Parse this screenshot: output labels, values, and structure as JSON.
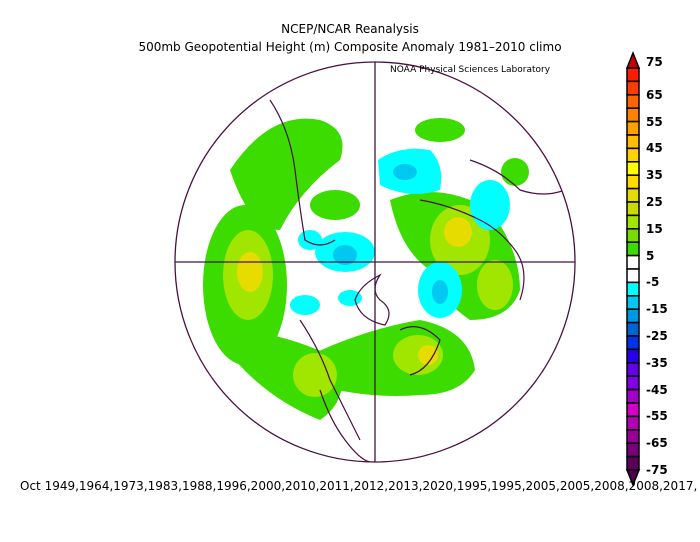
{
  "title": {
    "line1": "NCEP/NCAR Reanalysis",
    "line2": "500mb Geopotential Height (m) Composite Anomaly 1981–2010 climo",
    "credit": "NOAA Physical Sciences Laboratory"
  },
  "caption": "Oct 1949,1964,1973,1983,1988,1996,2000,2010,2011,2012,2013,2020,1995,1995,2005,2005,2008,2008,2017,",
  "colorbar": {
    "labels": [
      "75",
      "65",
      "55",
      "45",
      "35",
      "25",
      "15",
      "5",
      "-5",
      "-15",
      "-25",
      "-35",
      "-45",
      "-55",
      "-65",
      "-75"
    ],
    "colors": [
      "#ff1a00",
      "#ff3c00",
      "#ff6400",
      "#ff8200",
      "#ffa000",
      "#ffbe00",
      "#ffd200",
      "#ffff00",
      "#ffdc00",
      "#e6dc00",
      "#c8dc00",
      "#a0e600",
      "#78dc00",
      "#3cdc00",
      "#ffffff",
      "#ffffff",
      "#00ffff",
      "#00c8f0",
      "#0096e6",
      "#0064d2",
      "#0032e6",
      "#2800e6",
      "#6400e6",
      "#8200e6",
      "#a000c8",
      "#d200c8",
      "#b400b4",
      "#960096",
      "#780078",
      "#5a005a"
    ],
    "top_arrow": "#c80000",
    "bottom_arrow": "#500050"
  }
}
